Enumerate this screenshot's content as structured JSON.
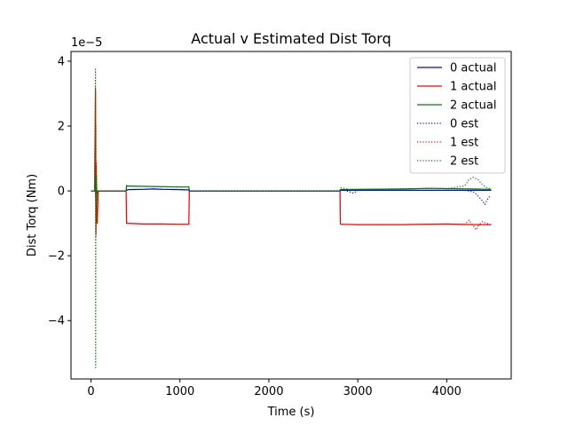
{
  "chart_data": {
    "type": "line",
    "title": "Actual v Estimated Dist Torq",
    "xlabel": "Time (s)",
    "ylabel": "Dist Torq (Nm)",
    "y_offset_label": "1e−5",
    "xlim": [
      -225,
      4725
    ],
    "ylim": [
      -5.8e-05,
      4.3e-05
    ],
    "xticks": [
      0,
      1000,
      2000,
      3000,
      4000
    ],
    "xtick_labels": [
      "0",
      "1000",
      "2000",
      "3000",
      "4000"
    ],
    "yticks": [
      -4e-05,
      -2e-05,
      0,
      2e-05,
      4e-05
    ],
    "ytick_labels": [
      "−4",
      "−2",
      "0",
      "2",
      "4"
    ],
    "grid": false,
    "legend_position": "top-right",
    "series": [
      {
        "name": "0 actual",
        "color": "#0000ff",
        "style": "solid",
        "x": [
          0,
          40,
          50,
          55,
          60,
          65,
          70,
          80,
          100,
          390,
          400,
          420,
          600,
          700,
          800,
          1000,
          1100,
          1105,
          1200,
          2000,
          2800,
          2805,
          3000,
          3500,
          4000,
          4300,
          4500
        ],
        "y": [
          0,
          0,
          2e-06,
          -2e-06,
          1e-06,
          -5e-07,
          0,
          0,
          0,
          0,
          2e-07,
          4e-07,
          5e-07,
          6e-07,
          5e-07,
          4e-07,
          3e-07,
          0,
          0,
          0,
          0,
          2e-07,
          2e-07,
          2e-07,
          2e-07,
          2e-07,
          2e-07
        ]
      },
      {
        "name": "1 actual",
        "color": "#ff0000",
        "style": "solid",
        "x": [
          0,
          40,
          50,
          55,
          58,
          62,
          65,
          70,
          80,
          100,
          395,
          400,
          405,
          600,
          800,
          1000,
          1100,
          1105,
          1200,
          2000,
          2800,
          2805,
          3000,
          3500,
          4000,
          4300,
          4500
        ],
        "y": [
          0,
          0,
          3.1e-05,
          -1.3e-05,
          8e-06,
          -5e-06,
          -9e-06,
          -1e-05,
          0,
          0,
          0,
          -1e-05,
          -1e-05,
          -1.02e-05,
          -1.02e-05,
          -1.03e-05,
          -1.03e-05,
          0,
          0,
          0,
          0,
          -1.03e-05,
          -1.04e-05,
          -1.04e-05,
          -1.02e-05,
          -1.04e-05,
          -1.04e-05
        ]
      },
      {
        "name": "2 actual",
        "color": "#008000",
        "style": "solid",
        "x": [
          0,
          40,
          50,
          55,
          60,
          65,
          70,
          80,
          100,
          395,
          400,
          405,
          600,
          800,
          1000,
          1100,
          1105,
          1200,
          2000,
          2800,
          2805,
          3000,
          3500,
          3800,
          4000,
          4300,
          4500
        ],
        "y": [
          0,
          0,
          5e-06,
          -4e-06,
          2e-06,
          -1e-06,
          0,
          0,
          0,
          0,
          1.7e-06,
          1.5e-06,
          1.4e-06,
          1.3e-06,
          1.2e-06,
          1.2e-06,
          0,
          0,
          0,
          0,
          4e-07,
          5e-07,
          6e-07,
          8e-07,
          7e-07,
          6e-07,
          5e-07
        ]
      },
      {
        "name": "0 est",
        "color": "#0000ff",
        "style": "dotted",
        "x": [
          0,
          40,
          50,
          55,
          60,
          65,
          70,
          80,
          100,
          390,
          400,
          420,
          600,
          700,
          800,
          1000,
          1100,
          1105,
          1200,
          2000,
          2800,
          2820,
          2900,
          2950,
          3000,
          3200,
          3500,
          4000,
          4200,
          4300,
          4350,
          4400,
          4430,
          4470,
          4500
        ],
        "y": [
          0,
          0,
          3e-06,
          -3e-06,
          1e-06,
          -5e-07,
          0,
          0,
          0,
          0,
          2e-07,
          4e-07,
          5e-07,
          6e-07,
          5e-07,
          4e-07,
          3e-07,
          0,
          0,
          0,
          0,
          4e-07,
          -2e-07,
          -7e-07,
          2e-07,
          3e-07,
          2e-07,
          2e-07,
          2e-07,
          -3e-07,
          -1.5e-06,
          -3e-06,
          -4.2e-06,
          -2e-06,
          -1.5e-06
        ]
      },
      {
        "name": "1 est",
        "color": "#ff0000",
        "style": "dotted",
        "x": [
          0,
          40,
          50,
          55,
          58,
          62,
          65,
          70,
          80,
          100,
          395,
          400,
          405,
          600,
          800,
          1000,
          1100,
          1105,
          1200,
          2000,
          2800,
          2805,
          3000,
          3500,
          4000,
          4200,
          4250,
          4300,
          4330,
          4360,
          4400,
          4500
        ],
        "y": [
          0,
          0,
          3.2e-05,
          -1.4e-05,
          9e-06,
          -5e-06,
          -9e-06,
          -1e-05,
          0,
          0,
          0,
          -1e-05,
          -1e-05,
          -1.02e-05,
          -1.02e-05,
          -1.03e-05,
          -1.03e-05,
          0,
          0,
          0,
          0,
          -1.03e-05,
          -1.04e-05,
          -1.04e-05,
          -1.02e-05,
          -1.04e-05,
          -9e-06,
          -1.08e-05,
          -1.2e-05,
          -1.06e-05,
          -9.5e-06,
          -1.05e-05
        ]
      },
      {
        "name": "2 est",
        "color": "#008000",
        "style": "dotted",
        "x": [
          0,
          40,
          50,
          52,
          55,
          58,
          62,
          66,
          70,
          80,
          100,
          395,
          400,
          405,
          600,
          800,
          1000,
          1100,
          1105,
          1200,
          2000,
          2800,
          2805,
          2900,
          3000,
          3500,
          3800,
          4000,
          4200,
          4250,
          4300,
          4350,
          4400,
          4450,
          4500
        ],
        "y": [
          0,
          0,
          3.75e-05,
          -5.45e-05,
          2e-05,
          -1e-05,
          5e-06,
          -3e-06,
          0,
          0,
          0,
          0,
          1.7e-06,
          1.5e-06,
          1.4e-06,
          1.3e-06,
          1.2e-06,
          1.2e-06,
          0,
          0,
          0,
          0,
          1e-06,
          5e-07,
          5e-07,
          6e-07,
          8e-07,
          7e-07,
          1.5e-06,
          3.5e-06,
          4.2e-06,
          3.5e-06,
          2e-06,
          1e-06,
          5e-07
        ]
      }
    ]
  }
}
